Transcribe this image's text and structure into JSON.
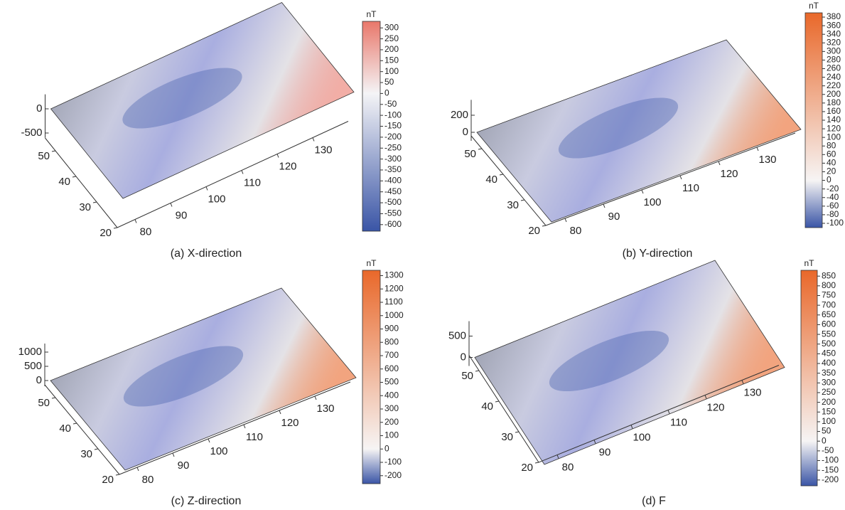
{
  "chart_data": [
    {
      "type": "surface",
      "caption": "(a) X-direction",
      "xlim": [
        75,
        140
      ],
      "xticks": [
        80,
        90,
        100,
        110,
        120,
        130
      ],
      "ylim": [
        20,
        55
      ],
      "yticks": [
        20,
        30,
        40,
        50
      ],
      "zlim": [
        -600,
        300
      ],
      "zticks": [
        -500,
        0
      ],
      "colorbar": {
        "label": "nT",
        "lim": [
          -630,
          330
        ],
        "colors": [
          "#3a55a6",
          "#f4f4f6",
          "#e9776a"
        ],
        "ticks": [
          300,
          250,
          200,
          150,
          100,
          50,
          0,
          -50,
          -100,
          -150,
          -200,
          -250,
          -300,
          -350,
          -400,
          -450,
          -500,
          -550,
          -600
        ]
      }
    },
    {
      "type": "surface",
      "caption": "(b) Y-direction",
      "xlim": [
        75,
        140
      ],
      "xticks": [
        80,
        90,
        100,
        110,
        120,
        130
      ],
      "ylim": [
        20,
        55
      ],
      "yticks": [
        20,
        30,
        40,
        50
      ],
      "zlim": [
        -100,
        380
      ],
      "zticks": [
        0,
        200
      ],
      "colorbar": {
        "label": "nT",
        "lim": [
          -110,
          390
        ],
        "colors": [
          "#3a55a6",
          "#f6f4f4",
          "#e9682a"
        ],
        "ticks": [
          380,
          360,
          340,
          320,
          300,
          280,
          260,
          240,
          220,
          200,
          180,
          160,
          140,
          120,
          100,
          80,
          60,
          40,
          20,
          0,
          -20,
          -40,
          -60,
          -80,
          -100
        ]
      }
    },
    {
      "type": "surface",
      "caption": "(c) Z-direction",
      "xlim": [
        75,
        140
      ],
      "xticks": [
        80,
        90,
        100,
        110,
        120,
        130
      ],
      "ylim": [
        20,
        55
      ],
      "yticks": [
        20,
        30,
        40,
        50
      ],
      "zlim": [
        -200,
        1300
      ],
      "zticks": [
        0,
        500,
        1000
      ],
      "colorbar": {
        "label": "nT",
        "lim": [
          -260,
          1340
        ],
        "colors": [
          "#3a55a6",
          "#f6f4f4",
          "#e9682a"
        ],
        "ticks": [
          1300,
          1200,
          1100,
          1000,
          900,
          800,
          700,
          600,
          500,
          400,
          300,
          200,
          100,
          0,
          -100,
          -200
        ]
      }
    },
    {
      "type": "surface",
      "caption": "(d) F",
      "xlim": [
        75,
        140
      ],
      "xticks": [
        80,
        90,
        100,
        110,
        120,
        130
      ],
      "ylim": [
        20,
        55
      ],
      "yticks": [
        20,
        30,
        40,
        50
      ],
      "zlim": [
        -200,
        850
      ],
      "zticks": [
        0,
        500
      ],
      "colorbar": {
        "label": "nT",
        "lim": [
          -230,
          880
        ],
        "colors": [
          "#3a55a6",
          "#f6f4f4",
          "#e9682a"
        ],
        "ticks": [
          850,
          800,
          750,
          700,
          650,
          600,
          550,
          500,
          450,
          400,
          350,
          300,
          250,
          200,
          150,
          100,
          50,
          0,
          -50,
          -100,
          -150,
          -200
        ]
      }
    }
  ]
}
